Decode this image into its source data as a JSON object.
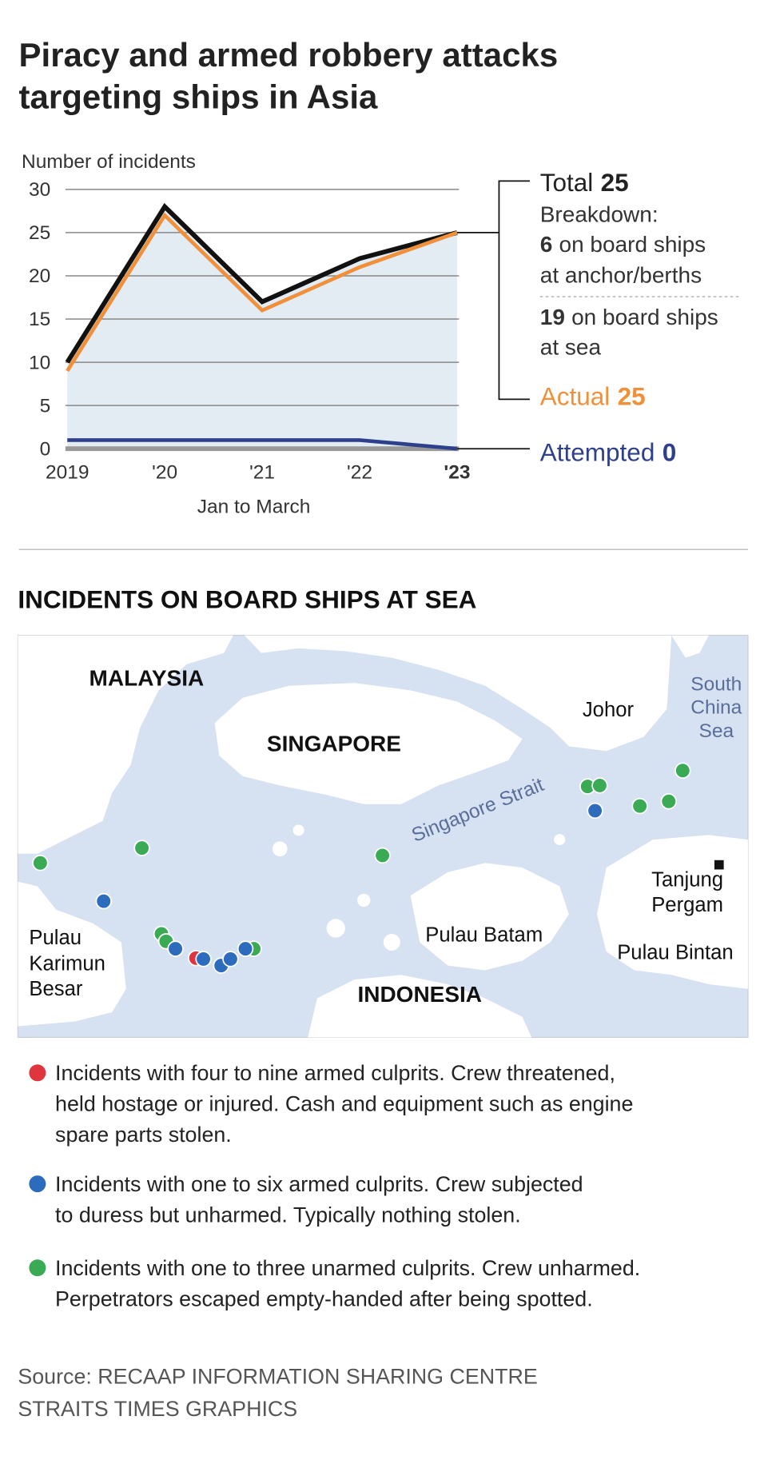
{
  "title_lines": [
    "Piracy and armed robbery attacks",
    "targeting ships in Asia"
  ],
  "chart_data": {
    "type": "line",
    "ylabel": "Number of incidents",
    "xlabel": "Jan to March",
    "categories": [
      "2019",
      "'20",
      "'21",
      "'22",
      "'23"
    ],
    "series": [
      {
        "name": "Total",
        "color": "#111111",
        "values": [
          10,
          28,
          17,
          22,
          25
        ]
      },
      {
        "name": "Actual",
        "color": "#f0903a",
        "values": [
          9,
          27,
          16,
          21,
          25
        ]
      },
      {
        "name": "Attempted",
        "color": "#2e3f8c",
        "values": [
          1,
          1,
          1,
          1,
          0
        ]
      }
    ],
    "area_color": "#e3ecf3",
    "ylim": [
      0,
      30
    ],
    "yticks": [
      0,
      5,
      10,
      15,
      20,
      25,
      30
    ],
    "grid": true,
    "breakdown_title": "Breakdown:",
    "breakdown": [
      {
        "value": 6,
        "lines": [
          "on board ships",
          "at anchor/berths"
        ]
      },
      {
        "value": 19,
        "lines": [
          "on board ships",
          "at sea"
        ]
      }
    ]
  },
  "map": {
    "title": "INCIDENTS ON BOARD SHIPS AT SEA",
    "labels": {
      "malaysia": "MALAYSIA",
      "singapore": "SINGAPORE",
      "johor": "Johor",
      "scs": [
        "South",
        "China",
        "Sea"
      ],
      "strait": "Singapore Strait",
      "tanjung": [
        "Tanjung",
        "Pergam"
      ],
      "batam": "Pulau Batam",
      "bintan": "Pulau Bintan",
      "karimun": [
        "Pulau",
        "Karimun",
        "Besar"
      ],
      "indonesia": "INDONESIA"
    }
  },
  "legend": [
    {
      "color": "#e0343f",
      "lines": [
        "Incidents with four to nine armed culprits. Crew threatened,",
        "held hostage or injured. Cash and equipment such as engine",
        "spare parts stolen."
      ]
    },
    {
      "color": "#2d6bbd",
      "lines": [
        "Incidents with one to six armed culprits. Crew subjected",
        "to duress but unharmed. Typically nothing stolen."
      ]
    },
    {
      "color": "#3aaa55",
      "lines": [
        "Incidents with one to three unarmed culprits. Crew unharmed.",
        "Perpetrators escaped empty-handed after being spotted."
      ]
    }
  ],
  "source": [
    "Source: RECAAP INFORMATION SHARING CENTRE",
    "STRAITS TIMES GRAPHICS"
  ]
}
